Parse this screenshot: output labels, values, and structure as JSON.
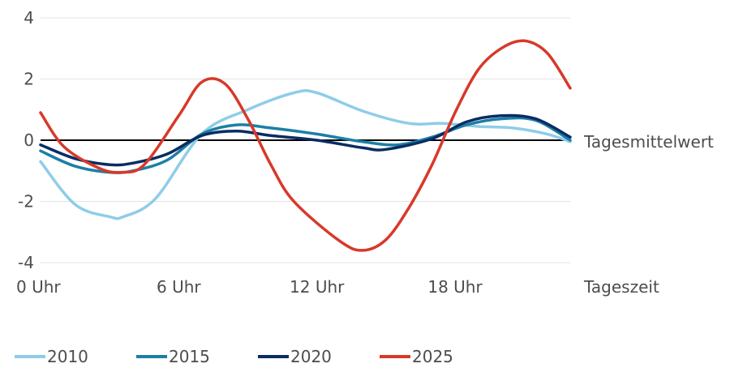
{
  "chart_data": {
    "type": "line",
    "title": "",
    "xlabel": "Tageszeit",
    "ylabel": "",
    "reference_label": "Tagesmittelwert",
    "xlim": [
      0,
      23
    ],
    "ylim": [
      -4,
      4
    ],
    "x_ticks": [
      {
        "value": 0,
        "label": "0 Uhr"
      },
      {
        "value": 6,
        "label": "6 Uhr"
      },
      {
        "value": 12,
        "label": "12 Uhr"
      },
      {
        "value": 18,
        "label": "18 Uhr"
      }
    ],
    "y_ticks": [
      {
        "value": 4,
        "label": "4"
      },
      {
        "value": 2,
        "label": "2"
      },
      {
        "value": 0,
        "label": "0"
      },
      {
        "value": -2,
        "label": "-2"
      },
      {
        "value": -4,
        "label": "-4"
      }
    ],
    "grid": true,
    "legend_position": "bottom",
    "series": [
      {
        "name": "2010",
        "color": "#8ecde8",
        "x": [
          0,
          1.5,
          3,
          3.6,
          5,
          7,
          9,
          11,
          12,
          14,
          16,
          17.5,
          19,
          20.5,
          22,
          23
        ],
        "values": [
          -0.7,
          -2.1,
          -2.5,
          -2.5,
          -1.9,
          0.2,
          1.0,
          1.55,
          1.55,
          0.95,
          0.55,
          0.55,
          0.45,
          0.4,
          0.2,
          -0.05
        ]
      },
      {
        "name": "2015",
        "color": "#1b7fa6",
        "x": [
          0,
          1.5,
          3,
          4,
          5.5,
          7,
          8.5,
          10,
          12,
          14,
          15.5,
          17,
          18.5,
          20,
          21.5,
          23
        ],
        "values": [
          -0.35,
          -0.85,
          -1.05,
          -1.0,
          -0.65,
          0.2,
          0.5,
          0.4,
          0.2,
          -0.05,
          -0.15,
          0.1,
          0.5,
          0.7,
          0.65,
          0.0
        ]
      },
      {
        "name": "2020",
        "color": "#0a2c63",
        "x": [
          0,
          1.5,
          3,
          4,
          5.5,
          7,
          8.5,
          10,
          12,
          14,
          15,
          17,
          18.5,
          20,
          21.5,
          23
        ],
        "values": [
          -0.15,
          -0.6,
          -0.8,
          -0.75,
          -0.45,
          0.15,
          0.3,
          0.15,
          0.0,
          -0.25,
          -0.3,
          0.05,
          0.6,
          0.8,
          0.7,
          0.1
        ]
      },
      {
        "name": "2025",
        "color": "#d7392a",
        "x": [
          0,
          1,
          2.5,
          3.5,
          4.5,
          6,
          7,
          8,
          9,
          10,
          11,
          13,
          14,
          15,
          16,
          17,
          18,
          19,
          20,
          21,
          22,
          23
        ],
        "values": [
          0.9,
          -0.2,
          -0.9,
          -1.05,
          -0.8,
          0.8,
          1.9,
          1.85,
          0.7,
          -0.8,
          -2.0,
          -3.3,
          -3.6,
          -3.25,
          -2.2,
          -0.8,
          0.9,
          2.3,
          3.0,
          3.25,
          2.85,
          1.7
        ]
      }
    ]
  }
}
